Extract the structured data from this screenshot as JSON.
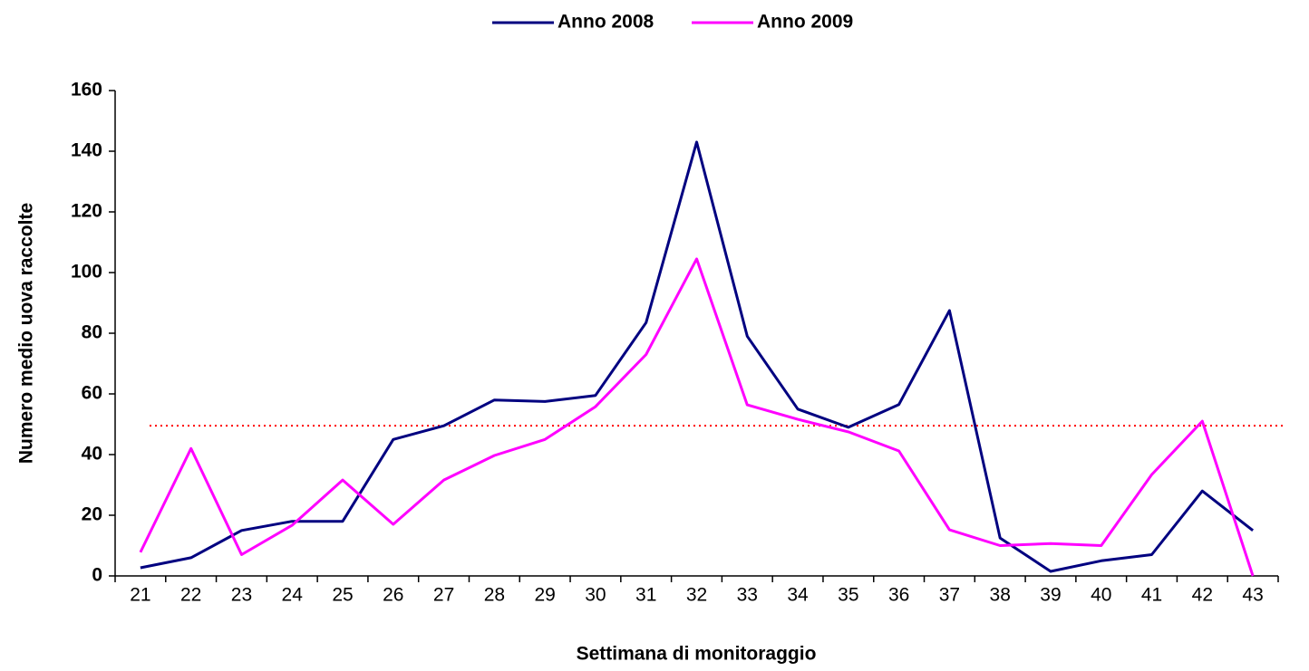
{
  "chart_data": {
    "type": "line",
    "x_label": "Settimana di monitoraggio",
    "y_label": "Numero medio uova raccolte",
    "categories": [
      "21",
      "22",
      "23",
      "24",
      "25",
      "26",
      "27",
      "28",
      "29",
      "30",
      "31",
      "32",
      "33",
      "34",
      "35",
      "36",
      "37",
      "38",
      "39",
      "40",
      "41",
      "42",
      "43"
    ],
    "series": [
      {
        "name": "Anno 2008",
        "color": "#000080",
        "values": [
          2.7,
          6,
          15,
          18,
          18,
          45,
          49.5,
          58,
          57.5,
          59.5,
          83.5,
          143,
          79,
          55,
          49,
          56.5,
          87.5,
          12.5,
          1.5,
          5,
          7,
          28,
          15
        ]
      },
      {
        "name": "Anno 2009",
        "color": "#ff00ff",
        "values": [
          7.8,
          42,
          7,
          16.7,
          31.6,
          17,
          31.6,
          39.7,
          45,
          55.8,
          73,
          104.5,
          56.4,
          51.6,
          47.5,
          41.2,
          15.2,
          10,
          10.7,
          10,
          33.4,
          51,
          0
        ]
      }
    ],
    "reference_line": {
      "value": 49.5,
      "color": "#ff0000"
    },
    "ylim": [
      0,
      160
    ],
    "yticks": [
      0,
      20,
      40,
      60,
      80,
      100,
      120,
      140,
      160
    ],
    "legend": "top"
  }
}
